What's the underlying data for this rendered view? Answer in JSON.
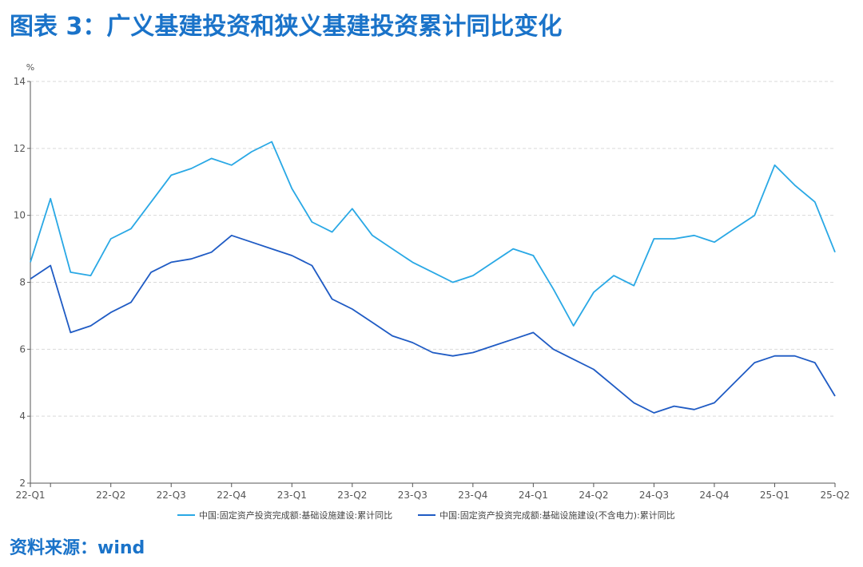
{
  "title": "图表 3：广义基建投资和狭义基建投资累计同比变化",
  "source": "资料来源：wind",
  "chart_data": {
    "type": "line",
    "ylabel": "%",
    "ylim": [
      2,
      14
    ],
    "yticks": [
      2,
      4,
      6,
      8,
      10,
      12,
      14
    ],
    "grid": true,
    "legend_position": "bottom-center",
    "x_tick_labels": [
      "22-Q1",
      "22-Q2",
      "22-Q3",
      "22-Q4",
      "23-Q1",
      "23-Q2",
      "23-Q3",
      "23-Q4",
      "24-Q1",
      "24-Q2",
      "24-Q3",
      "24-Q4",
      "25-Q1",
      "25-Q2"
    ],
    "x_tick_index": [
      0,
      4,
      7,
      10,
      13,
      16,
      19,
      22,
      25,
      28,
      31,
      34,
      37,
      40
    ],
    "x_count": 41,
    "series": [
      {
        "name": "中国:固定资产投资完成额:基础设施建设:累计同比",
        "color": "#29a8e5",
        "values": [
          8.6,
          10.5,
          8.3,
          8.2,
          9.3,
          9.6,
          10.4,
          11.2,
          11.4,
          11.7,
          11.5,
          11.9,
          12.2,
          10.8,
          9.8,
          9.5,
          10.2,
          9.4,
          9.0,
          8.6,
          8.3,
          8.0,
          8.2,
          8.6,
          9.0,
          8.8,
          7.8,
          6.7,
          7.7,
          8.2,
          7.9,
          9.3,
          9.3,
          9.4,
          9.2,
          9.6,
          10.0,
          11.5,
          10.9,
          10.4,
          8.9
        ]
      },
      {
        "name": "中国:固定资产投资完成额:基础设施建设(不含电力):累计同比",
        "color": "#1f5bc4",
        "values": [
          8.1,
          8.5,
          6.5,
          6.7,
          7.1,
          7.4,
          8.3,
          8.6,
          8.7,
          8.9,
          9.4,
          9.2,
          9.0,
          8.8,
          8.5,
          7.5,
          7.2,
          6.8,
          6.4,
          6.2,
          5.9,
          5.8,
          5.9,
          6.1,
          6.3,
          6.5,
          6.0,
          5.7,
          5.4,
          4.9,
          4.4,
          4.1,
          4.3,
          4.2,
          4.4,
          5.0,
          5.6,
          5.8,
          5.8,
          5.6,
          4.6
        ]
      }
    ]
  }
}
